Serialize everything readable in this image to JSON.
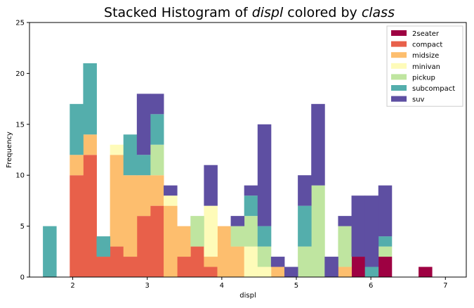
{
  "chart_data": {
    "type": "bar",
    "stacked": true,
    "title_parts": [
      {
        "text": "Stacked Histogram of ",
        "italic": false
      },
      {
        "text": "displ",
        "italic": true
      },
      {
        "text": " colored by ",
        "italic": false
      },
      {
        "text": "class",
        "italic": true
      }
    ],
    "xlabel": "displ",
    "ylabel": "Frequency",
    "xlim": [
      1.42,
      7.28
    ],
    "ylim": [
      0,
      25
    ],
    "xticks": [
      2,
      3,
      4,
      5,
      6,
      7
    ],
    "yticks": [
      0,
      5,
      10,
      15,
      20,
      25
    ],
    "bin_start": 1.6,
    "bin_width": 0.18,
    "legend_position": "top-right",
    "grid": false,
    "series": [
      {
        "name": "2seater",
        "color": "#9e0142",
        "values": [
          0,
          0,
          0,
          0,
          0,
          0,
          0,
          0,
          0,
          0,
          0,
          0,
          0,
          0,
          0,
          0,
          0,
          0,
          0,
          0,
          0,
          0,
          0,
          2,
          0,
          2,
          0,
          0,
          1,
          0
        ]
      },
      {
        "name": "compact",
        "color": "#e8604a",
        "values": [
          0,
          0,
          10,
          12,
          2,
          3,
          2,
          6,
          7,
          0,
          2,
          3,
          1,
          0,
          0,
          0,
          0,
          0,
          0,
          0,
          0,
          0,
          0,
          0,
          0,
          0,
          0,
          0,
          0,
          0
        ]
      },
      {
        "name": "midsize",
        "color": "#fdbe6e",
        "values": [
          0,
          0,
          2,
          2,
          0,
          9,
          8,
          4,
          3,
          7,
          3,
          0,
          1,
          5,
          3,
          0,
          0,
          1,
          0,
          0,
          0,
          0,
          1,
          0,
          0,
          0,
          0,
          0,
          0,
          0
        ]
      },
      {
        "name": "minivan",
        "color": "#fefbb9",
        "values": [
          0,
          0,
          0,
          0,
          0,
          1,
          0,
          0,
          0,
          1,
          0,
          0,
          5,
          0,
          0,
          3,
          1,
          0,
          0,
          0,
          0,
          0,
          0,
          0,
          0,
          0,
          0,
          0,
          0,
          0
        ]
      },
      {
        "name": "pickup",
        "color": "#bfe5a0",
        "values": [
          0,
          0,
          0,
          0,
          0,
          0,
          0,
          0,
          3,
          0,
          0,
          3,
          0,
          0,
          2,
          3,
          2,
          0,
          0,
          3,
          9,
          0,
          4,
          0,
          0,
          1,
          0,
          0,
          0,
          0
        ]
      },
      {
        "name": "subcompact",
        "color": "#54aeac",
        "values": [
          5,
          0,
          5,
          7,
          2,
          0,
          4,
          2,
          3,
          0,
          0,
          0,
          0,
          0,
          0,
          2,
          2,
          0,
          0,
          4,
          0,
          0,
          0,
          0,
          1,
          1,
          0,
          0,
          0,
          0
        ]
      },
      {
        "name": "suv",
        "color": "#5e4fa2",
        "values": [
          0,
          0,
          0,
          0,
          0,
          0,
          0,
          6,
          2,
          1,
          0,
          0,
          4,
          0,
          1,
          1,
          10,
          1,
          1,
          3,
          8,
          2,
          1,
          6,
          7,
          5,
          0,
          0,
          0,
          0
        ]
      }
    ]
  }
}
